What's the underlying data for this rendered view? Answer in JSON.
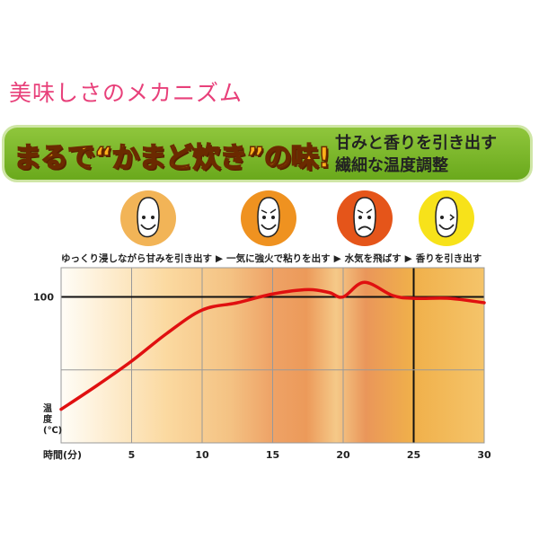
{
  "title": "美味しさのメカニズム",
  "banner": {
    "slogan": "まるで“かまど炊き”の味!",
    "sub_line1": "甘みと香りを引き出す",
    "sub_line2": "繊細な温度調整"
  },
  "stages": [
    {
      "label": "ゆっくり浸しながら甘みを引き出す",
      "face_color": "#f2b457",
      "expression": "smile"
    },
    {
      "label": "一気に強火で粘りを出す",
      "face_color": "#ef9220",
      "expression": "determined"
    },
    {
      "label": "水気を飛ばす",
      "face_color": "#e5551a",
      "expression": "frown"
    },
    {
      "label": "香りを引き出す",
      "face_color": "#f7e21a",
      "expression": "wink"
    }
  ],
  "separator": "▶",
  "chart_data": {
    "type": "line",
    "xlabel": "時間(分)",
    "ylabel": "温度(℃)",
    "xlim": [
      0,
      30
    ],
    "ylim": [
      0,
      120
    ],
    "x_ticks": [
      5,
      10,
      15,
      20,
      25,
      30
    ],
    "highlight_tick": 25,
    "y_ticks": [
      100
    ],
    "grid": true,
    "series": [
      {
        "color": "#e01010",
        "x": [
          0,
          2.5,
          5,
          7.5,
          10,
          12.5,
          15,
          17.5,
          19,
          20,
          21.5,
          23.5,
          25,
          27.5,
          30
        ],
        "y": [
          23,
          39,
          56,
          75,
          91,
          96,
          102,
          105,
          103,
          100,
          110,
          101,
          99,
          99,
          96
        ]
      }
    ]
  }
}
